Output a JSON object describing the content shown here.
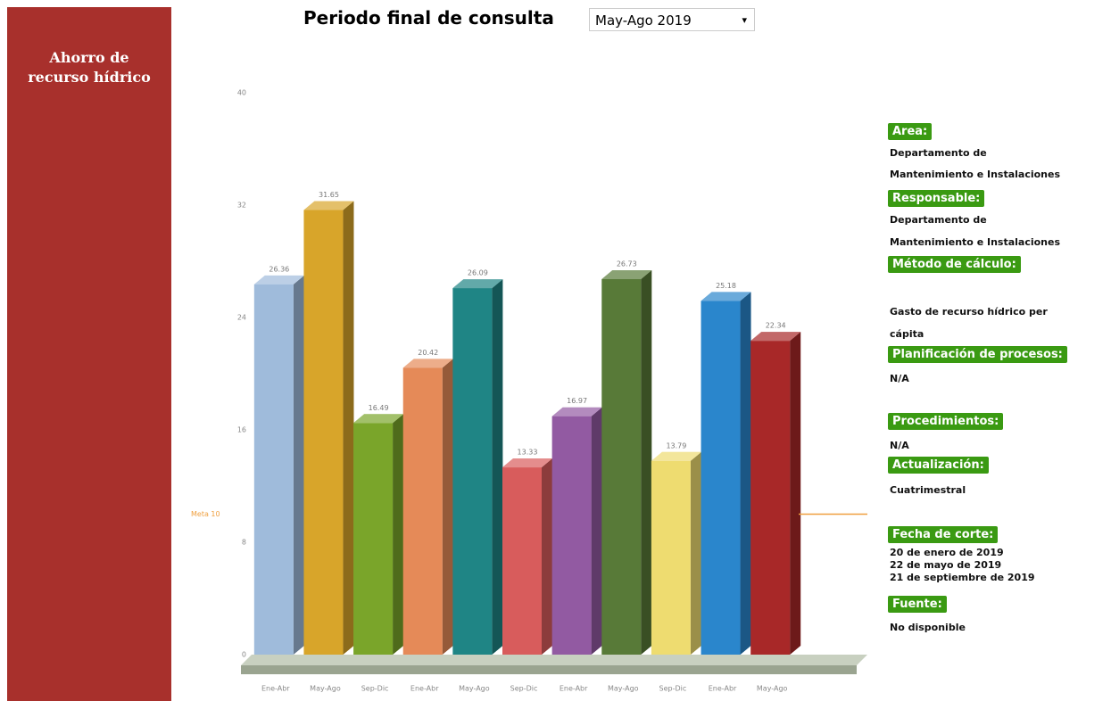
{
  "sidebar": {
    "title": [
      "Ahorro de",
      "recurso hídrico"
    ]
  },
  "header": {
    "label": "Periodo final de consulta",
    "selected": "May-Ago 2019"
  },
  "chart_data": {
    "type": "bar3d",
    "categories": [
      "Ene-Abr",
      "May-Ago",
      "Sep-Dic",
      "Ene-Abr",
      "May-Ago",
      "Sep-Dic",
      "Ene-Abr",
      "May-Ago",
      "Sep-Dic",
      "Ene-Abr",
      "May-Ago"
    ],
    "values": [
      26.36,
      31.65,
      16.49,
      20.42,
      26.09,
      13.33,
      16.97,
      26.73,
      13.79,
      25.18,
      22.34
    ],
    "colors": [
      "#9fbbdb",
      "#d8a52a",
      "#7aa52a",
      "#e58a58",
      "#1f8585",
      "#d85c5c",
      "#925aa2",
      "#587a38",
      "#eedc70",
      "#2a86cc",
      "#a82828"
    ],
    "ylim": [
      0,
      40
    ],
    "yticks": [
      0,
      8,
      16,
      24,
      32,
      40
    ],
    "meta": {
      "value": 10,
      "label": "Meta 10",
      "color": "#f0a040"
    }
  },
  "info": [
    {
      "label": "Area:",
      "text": [
        "Departamento de",
        "Mantenimiento e Instalaciones"
      ]
    },
    {
      "label": "Responsable:",
      "text": [
        "Departamento de",
        "Mantenimiento e Instalaciones"
      ]
    },
    {
      "label": "Método de cálculo:",
      "text": [
        "Gasto de recurso hídrico per",
        "cápita"
      ]
    },
    {
      "label": "Planificación de procesos:",
      "text": [
        "N/A"
      ]
    },
    {
      "label": "Procedimientos:",
      "text": [
        "N/A"
      ]
    },
    {
      "label": "Actualización:",
      "text": [
        "Cuatrimestral"
      ]
    },
    {
      "label": "Fecha de corte:",
      "text": [
        "20 de enero de 2019",
        "22 de mayo de 2019",
        "21 de septiembre de 2019"
      ]
    },
    {
      "label": "Fuente:",
      "text": [
        "No disponible"
      ]
    }
  ]
}
